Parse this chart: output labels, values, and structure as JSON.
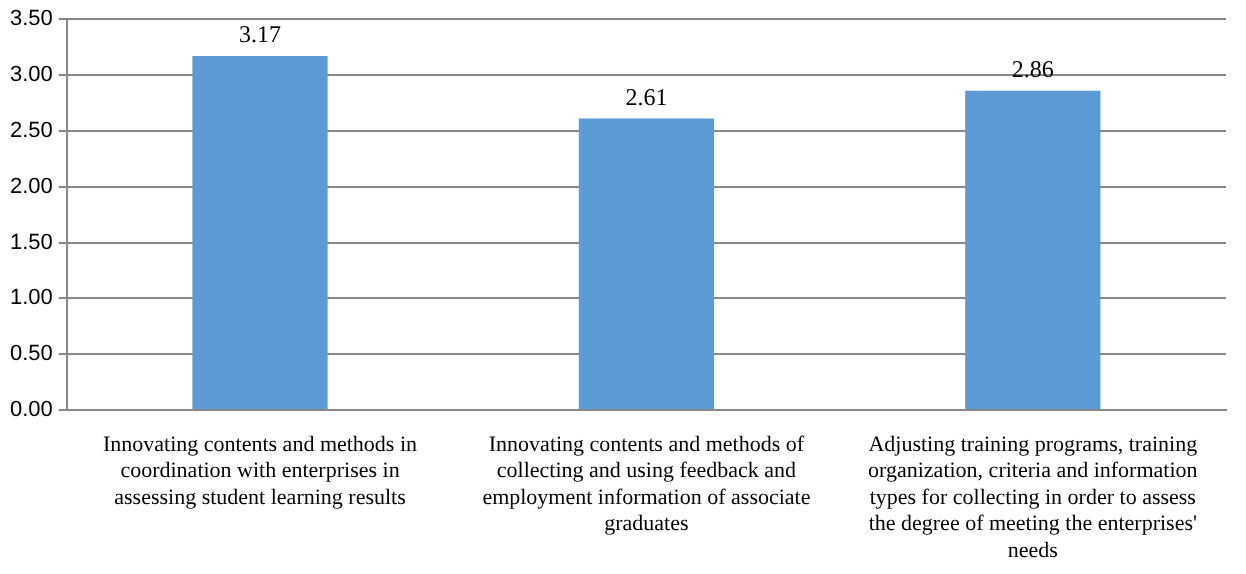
{
  "chart_data": {
    "type": "bar",
    "categories": [
      "Innovating contents and methods in coordination with enterprises in assessing student learning results",
      "Innovating contents and methods of collecting and using feedback and employment information of associate graduates",
      "Adjusting training programs, training organization, criteria and information types for collecting in order to assess the degree of meeting the enterprises' needs"
    ],
    "values": [
      3.17,
      2.61,
      2.86
    ],
    "color": "#5b9bd5",
    "ylim": [
      0,
      3.5
    ],
    "yticks": [
      {
        "value": 0,
        "label": "0.00"
      },
      {
        "value": 0.5,
        "label": "0.50"
      },
      {
        "value": 1,
        "label": "1.00"
      },
      {
        "value": 1.5,
        "label": "1.50"
      },
      {
        "value": 2,
        "label": "2.00"
      },
      {
        "value": 2.5,
        "label": "2.50"
      },
      {
        "value": 3,
        "label": "3.00"
      },
      {
        "value": 3.5,
        "label": "3.50"
      }
    ],
    "grid": "y",
    "data_labels": true
  }
}
